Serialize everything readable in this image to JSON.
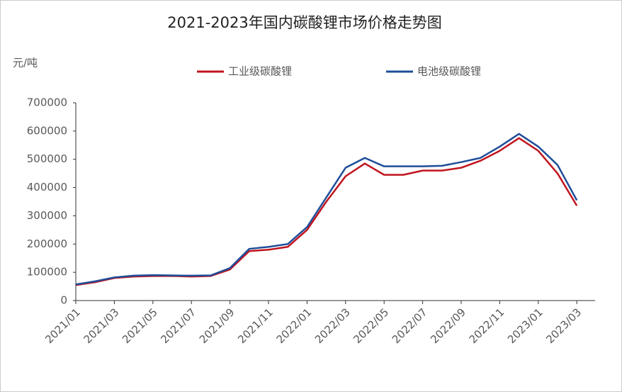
{
  "chart_data": {
    "type": "line",
    "title": "2021-2023年国内碳酸锂市场价格走势图",
    "y_label": "元/吨",
    "categories": [
      "2021/01",
      null,
      "2021/03",
      null,
      "2021/05",
      null,
      "2021/07",
      null,
      "2021/09",
      null,
      "2021/11",
      null,
      "2022/01",
      null,
      "2022/03",
      null,
      "2022/05",
      null,
      "2022/07",
      null,
      "2022/09",
      null,
      "2022/11",
      null,
      "2023/01",
      null,
      "2023/03"
    ],
    "series": [
      {
        "name": "工业级碳酸锂",
        "color": "#c0141e",
        "values": [
          55000,
          65000,
          80000,
          85000,
          87000,
          87000,
          85000,
          87000,
          110000,
          175000,
          180000,
          190000,
          250000,
          350000,
          440000,
          485000,
          445000,
          445000,
          460000,
          460000,
          470000,
          495000,
          530000,
          575000,
          530000,
          450000,
          336000
        ]
      },
      {
        "name": "电池级碳酸锂",
        "color": "#1f4e99",
        "values": [
          57000,
          68000,
          82000,
          88000,
          90000,
          89000,
          88000,
          89000,
          115000,
          183000,
          190000,
          200000,
          260000,
          365000,
          470000,
          505000,
          475000,
          475000,
          475000,
          477000,
          490000,
          505000,
          545000,
          590000,
          545000,
          480000,
          355000
        ]
      }
    ],
    "ylim": [
      0,
      700000
    ],
    "yticks": [
      0,
      100000,
      200000,
      300000,
      400000,
      500000,
      600000,
      700000
    ],
    "grid": false,
    "legend": "top"
  }
}
